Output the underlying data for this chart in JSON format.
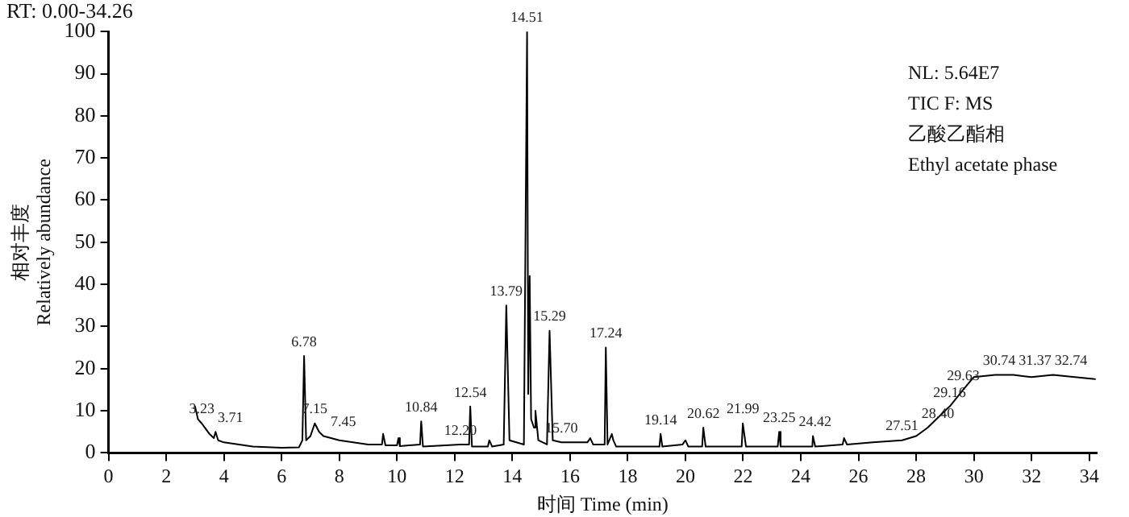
{
  "chart_data": {
    "type": "line",
    "title": "RT: 0.00-34.26",
    "xlabel": "时间 Time (min)",
    "ylabel": "相对丰度\nRelatively abundance",
    "x": [
      3.0,
      3.1,
      3.23,
      3.5,
      3.65,
      3.71,
      3.8,
      4.0,
      5.0,
      6.0,
      6.6,
      6.72,
      6.78,
      6.85,
      7.0,
      7.15,
      7.3,
      7.45,
      8.0,
      9.0,
      9.48,
      9.52,
      9.6,
      10.0,
      10.05,
      10.1,
      10.8,
      10.84,
      10.9,
      12.2,
      12.5,
      12.54,
      12.6,
      13.15,
      13.2,
      13.3,
      13.7,
      13.79,
      13.9,
      14.4,
      14.51,
      14.55,
      14.6,
      14.65,
      14.75,
      14.8,
      14.9,
      15.2,
      15.29,
      15.4,
      15.7,
      16.6,
      16.7,
      16.8,
      17.2,
      17.24,
      17.3,
      17.45,
      17.5,
      17.6,
      19.1,
      19.14,
      19.2,
      19.9,
      20.0,
      20.1,
      20.58,
      20.62,
      20.7,
      21.95,
      21.99,
      22.1,
      23.2,
      23.25,
      23.3,
      24.4,
      24.42,
      24.5,
      25.45,
      25.5,
      25.6,
      26.5,
      27.51,
      28.0,
      28.4,
      29.0,
      29.16,
      29.63,
      30.0,
      30.74,
      31.37,
      32.0,
      32.74,
      33.5,
      34.2
    ],
    "series": [
      {
        "color": "#000000",
        "values": [
          11,
          8,
          7,
          4.5,
          3.5,
          5,
          3,
          2.5,
          1.5,
          1.2,
          1.3,
          3,
          23,
          3,
          4,
          7,
          5,
          4,
          3,
          2,
          2,
          4.5,
          1.8,
          1.8,
          3.5,
          1.6,
          2,
          7.5,
          1.5,
          2,
          2,
          11,
          1.5,
          1.5,
          3,
          1.5,
          2,
          35,
          3,
          2,
          100,
          14,
          42,
          8,
          6,
          10,
          3,
          2,
          29,
          3,
          2.5,
          2.5,
          3.5,
          2,
          2,
          25,
          2,
          4.5,
          3,
          1.5,
          1.5,
          4.5,
          1.5,
          2,
          3,
          1.5,
          1.5,
          6,
          1.5,
          1.5,
          7,
          1.5,
          1.5,
          5,
          1.5,
          1.5,
          4,
          1.5,
          2,
          3.5,
          2,
          2.5,
          3,
          4,
          6,
          10,
          11,
          15,
          18,
          18.5,
          18.5,
          18,
          18.5,
          18,
          17.5
        ]
      }
    ],
    "xlim": [
      0,
      34.26
    ],
    "xticks": [
      0,
      2,
      4,
      6,
      8,
      10,
      12,
      14,
      16,
      18,
      20,
      22,
      24,
      26,
      28,
      30,
      32,
      34
    ],
    "ylim": [
      0,
      100
    ],
    "yticks": [
      0,
      10,
      20,
      30,
      40,
      50,
      60,
      70,
      80,
      90,
      100
    ],
    "grid": false,
    "legend": false,
    "marker": "none",
    "line_style": "solid",
    "annotations": [
      {
        "text": "3.23",
        "x": 3.23,
        "y": 7
      },
      {
        "text": "3.71",
        "x": 3.71,
        "y": 5
      },
      {
        "text": "6.78",
        "x": 6.78,
        "y": 23
      },
      {
        "text": "7.15",
        "x": 7.15,
        "y": 7
      },
      {
        "text": "7.45",
        "x": 7.45,
        "y": 4
      },
      {
        "text": "10.84",
        "x": 10.84,
        "y": 7.5
      },
      {
        "text": "12.20",
        "x": 12.2,
        "y": 2
      },
      {
        "text": "12.54",
        "x": 12.54,
        "y": 11
      },
      {
        "text": "13.79",
        "x": 13.79,
        "y": 35
      },
      {
        "text": "14.51",
        "x": 14.51,
        "y": 100
      },
      {
        "text": "15.29",
        "x": 15.29,
        "y": 29
      },
      {
        "text": "15.70",
        "x": 15.7,
        "y": 2.5
      },
      {
        "text": "17.24",
        "x": 17.24,
        "y": 25
      },
      {
        "text": "19.14",
        "x": 19.14,
        "y": 4.5
      },
      {
        "text": "20.62",
        "x": 20.62,
        "y": 6
      },
      {
        "text": "21.99",
        "x": 21.99,
        "y": 7
      },
      {
        "text": "23.25",
        "x": 23.25,
        "y": 5
      },
      {
        "text": "24.42",
        "x": 24.42,
        "y": 4
      },
      {
        "text": "27.51",
        "x": 27.51,
        "y": 3
      },
      {
        "text": "28.40",
        "x": 28.4,
        "y": 6
      },
      {
        "text": "29.16",
        "x": 29.16,
        "y": 11
      },
      {
        "text": "29.63",
        "x": 29.63,
        "y": 15
      },
      {
        "text": "30.74",
        "x": 30.74,
        "y": 18.5
      },
      {
        "text": "31.37",
        "x": 31.37,
        "y": 18.5
      },
      {
        "text": "32.74",
        "x": 32.74,
        "y": 18.5
      },
      "NL: 5.64E7",
      "TIC F: MS",
      "乙酸乙酯相",
      "Ethyl acetate phase"
    ]
  }
}
